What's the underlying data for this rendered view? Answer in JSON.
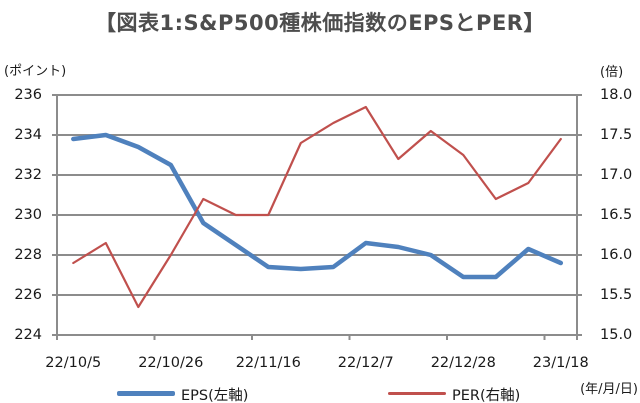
{
  "title": "【図表1:S&P500種株価指数のEPSとPER】",
  "legend": {
    "items": [
      {
        "label": "EPS(左軸)"
      },
      {
        "label": "PER(右軸)"
      }
    ]
  },
  "colors": {
    "eps_line": "#4F81BD",
    "per_line": "#C0504D",
    "grid": "#8C8C8C",
    "title_text": "#4D4D4D",
    "tick_text": "#1A1A1A"
  },
  "chart_data": {
    "type": "line",
    "title": "【図表1:S&P500種株価指数のEPSとPER】",
    "grid": true,
    "legend_position": "bottom",
    "x_axis": {
      "unit": "(年/月/日)",
      "tick_labels": [
        "22/10/5",
        "22/10/26",
        "22/11/16",
        "22/12/7",
        "22/12/28",
        "23/1/18"
      ],
      "tick_indices": [
        0,
        3,
        6,
        9,
        12,
        15
      ],
      "n_points": 16
    },
    "left_axis": {
      "unit": "(ポイント)",
      "min": 224,
      "max": 236,
      "step": 2,
      "tick_labels": [
        "236",
        "234",
        "232",
        "230",
        "228",
        "226",
        "224"
      ]
    },
    "right_axis": {
      "unit": "(倍)",
      "min": 15.0,
      "max": 18.0,
      "step": 0.5,
      "tick_labels": [
        "18.0",
        "17.5",
        "17.0",
        "16.5",
        "16.0",
        "15.5",
        "15.0"
      ]
    },
    "series": [
      {
        "name": "EPS(左軸)",
        "axis": "left",
        "color": "#4F81BD",
        "stroke_width": 4.5,
        "values": [
          233.8,
          234.0,
          233.4,
          232.5,
          229.6,
          228.5,
          227.4,
          227.3,
          227.4,
          228.6,
          228.4,
          228.0,
          226.9,
          226.9,
          228.3,
          227.6
        ]
      },
      {
        "name": "PER(右軸)",
        "axis": "right",
        "color": "#C0504D",
        "stroke_width": 2.2,
        "values": [
          15.9,
          16.15,
          15.35,
          16.0,
          16.7,
          16.5,
          16.5,
          17.4,
          17.65,
          17.85,
          17.2,
          17.55,
          17.25,
          16.7,
          16.9,
          17.45
        ]
      }
    ]
  }
}
